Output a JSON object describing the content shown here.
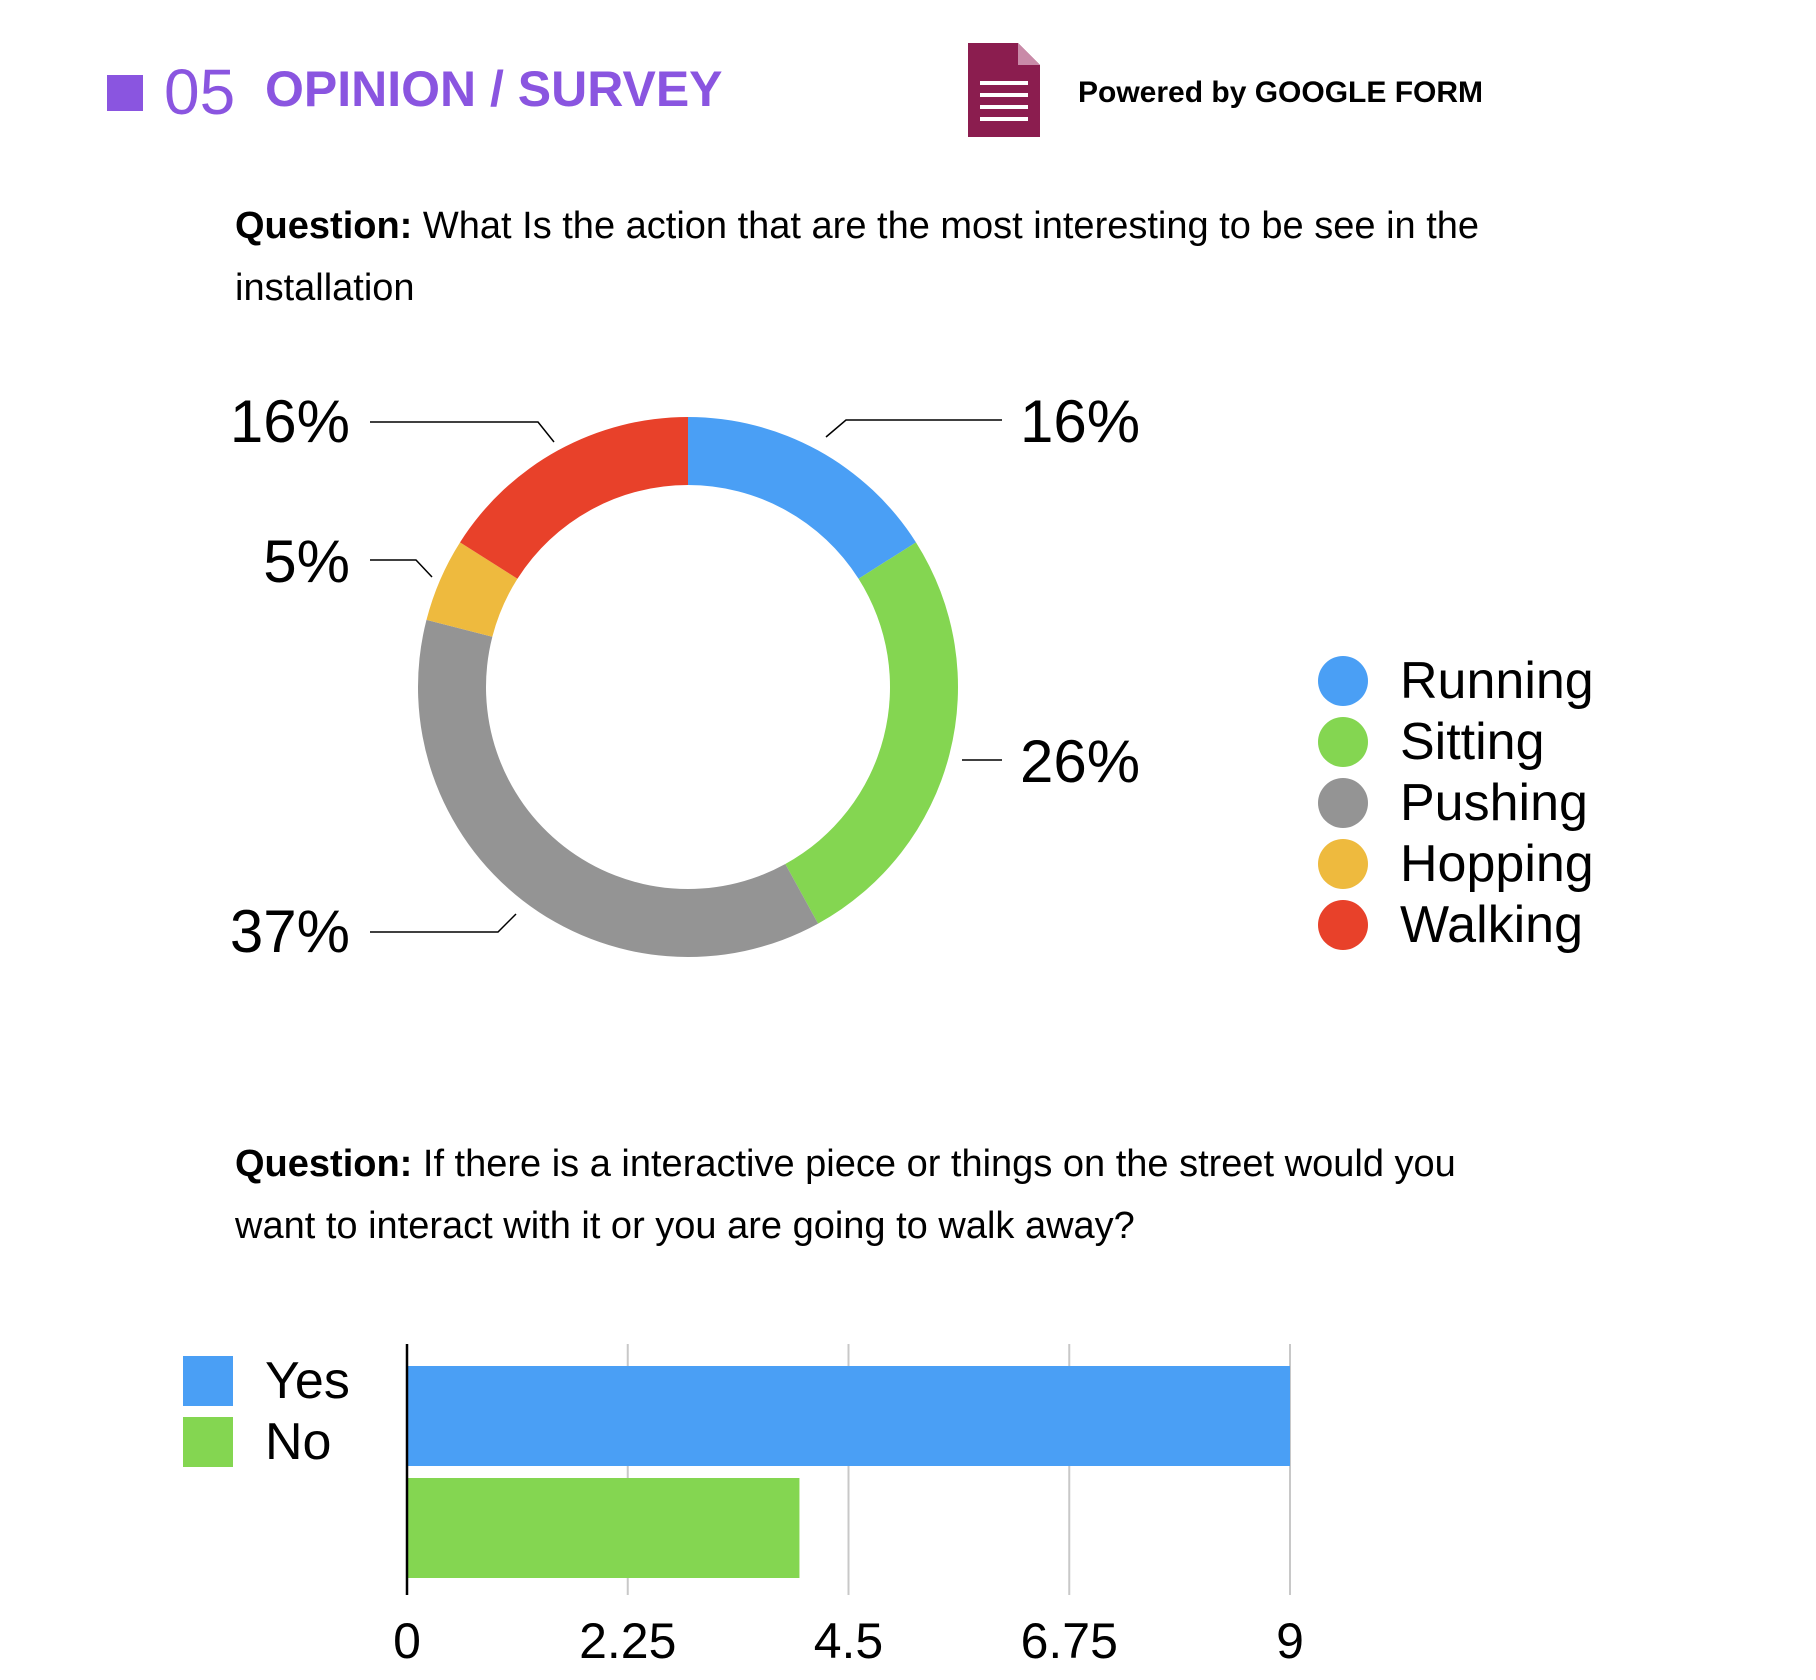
{
  "header": {
    "number": "05",
    "title": "OPINION / SURVEY",
    "powered_by": "Powered by GOOGLE FORM",
    "accent_color": "#8a55e0",
    "form_icon_color": "#8b1d4f"
  },
  "question1": {
    "label": "Question:",
    "text": " What Is the action that are the most interesting to be see in the installation"
  },
  "question2": {
    "label": "Question:",
    "text": " If there is a interactive piece or things on the street would you want to interact with it or you are going to walk away?"
  },
  "chart_data": [
    {
      "type": "pie",
      "style": "donut",
      "categories": [
        "Running",
        "Sitting",
        "Pushing",
        "Hopping",
        "Walking"
      ],
      "values": [
        16,
        26,
        37,
        5,
        16
      ],
      "data_labels": [
        "16%",
        "26%",
        "37%",
        "5%",
        "16%"
      ],
      "colors": [
        "#4a9ff5",
        "#84d651",
        "#949494",
        "#eeba3e",
        "#e8412a"
      ],
      "legend_position": "right"
    },
    {
      "type": "bar",
      "orientation": "horizontal",
      "categories": [
        "Yes",
        "No"
      ],
      "values": [
        9,
        4
      ],
      "colors": [
        "#4a9ff5",
        "#84d651"
      ],
      "xlim": [
        0,
        9
      ],
      "ticks": [
        "0",
        "2.25",
        "4.5",
        "6.75",
        "9"
      ],
      "tick_values": [
        0,
        2.25,
        4.5,
        6.75,
        9
      ],
      "grid": true,
      "legend_position": "left"
    }
  ]
}
